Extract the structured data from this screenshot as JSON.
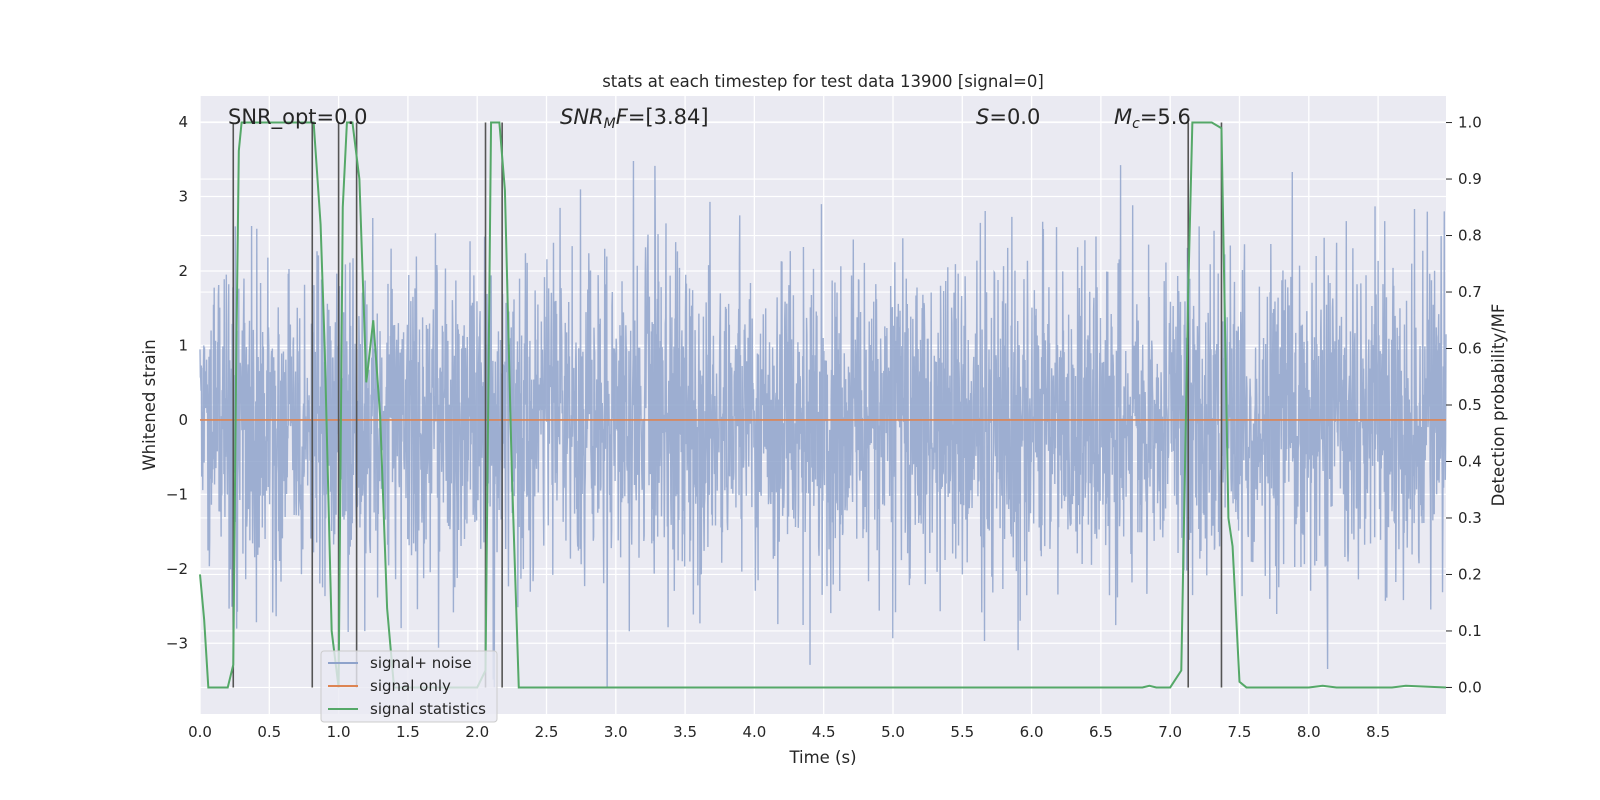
{
  "chart_data": {
    "type": "line",
    "title": "stats at each timestep for test data 13900 [signal=0]",
    "xlabel": "Time (s)",
    "ylabel": "Whitened strain",
    "y2label": "Detection probability/MF",
    "xlim": [
      0,
      8.99
    ],
    "ylim": [
      -3.95,
      4.35
    ],
    "y2lim": [
      -0.047,
      1.047
    ],
    "xticks": [
      0.0,
      0.5,
      1.0,
      1.5,
      2.0,
      2.5,
      3.0,
      3.5,
      4.0,
      4.5,
      5.0,
      5.5,
      6.0,
      6.5,
      7.0,
      7.5,
      8.0,
      8.5
    ],
    "yticks": [
      -3,
      -2,
      -1,
      0,
      1,
      2,
      3,
      4
    ],
    "y2ticks": [
      0.0,
      0.1,
      0.2,
      0.3,
      0.4,
      0.5,
      0.6,
      0.7,
      0.8,
      0.9,
      1.0
    ],
    "xtick_labels": [
      "0.0",
      "0.5",
      "1.0",
      "1.5",
      "2.0",
      "2.5",
      "3.0",
      "3.5",
      "4.0",
      "4.5",
      "5.0",
      "5.5",
      "6.0",
      "6.5",
      "7.0",
      "7.5",
      "8.0",
      "8.5"
    ],
    "ytick_labels": [
      "−3",
      "−2",
      "−1",
      "0",
      "1",
      "2",
      "3",
      "4"
    ],
    "y2tick_labels": [
      "0.0",
      "0.1",
      "0.2",
      "0.3",
      "0.4",
      "0.5",
      "0.6",
      "0.7",
      "0.8",
      "0.9",
      "1.0"
    ],
    "grid": true,
    "legend_position": "lower-left",
    "annotations": [
      {
        "text": "SNR_opt=0.0",
        "x": 0.2
      },
      {
        "text": "SNR_MF=[3.84]",
        "x": 2.6
      },
      {
        "text": "S=0.0",
        "x": 5.6
      },
      {
        "text": "M_c=5.6",
        "x": 6.6
      }
    ],
    "series": [
      {
        "name": "signal+ noise",
        "color": "#8fa3cb",
        "description_values": "noise amplitude approx 1.7 sigma range, peaks to about 4 / -3.6"
      },
      {
        "name": "signal only",
        "color": "#dd8452",
        "values_constant": 0.0
      },
      {
        "name": "signal statistics",
        "color": "#55a868",
        "x": [
          0.0,
          0.03,
          0.06,
          0.1,
          0.15,
          0.2,
          0.24,
          0.26,
          0.28,
          0.3,
          0.5,
          0.7,
          0.82,
          0.87,
          0.9,
          0.95,
          1.0,
          1.03,
          1.06,
          1.1,
          1.15,
          1.2,
          1.25,
          1.3,
          1.35,
          1.4,
          1.5,
          1.6,
          1.7,
          1.8,
          1.9,
          2.0,
          2.06,
          2.1,
          2.16,
          2.2,
          2.25,
          2.3,
          2.5,
          3.0,
          3.5,
          4.0,
          4.5,
          5.0,
          5.5,
          6.0,
          6.5,
          6.8,
          6.85,
          6.9,
          7.0,
          7.08,
          7.13,
          7.16,
          7.2,
          7.3,
          7.37,
          7.42,
          7.45,
          7.5,
          7.55,
          7.6,
          8.0,
          8.1,
          8.2,
          8.6,
          8.7,
          8.99
        ],
        "values": [
          0.2,
          0.12,
          0.0,
          0.0,
          0.0,
          0.0,
          0.04,
          0.55,
          0.95,
          1.0,
          1.0,
          1.0,
          1.0,
          0.82,
          0.6,
          0.1,
          0.0,
          0.85,
          1.0,
          1.0,
          0.9,
          0.54,
          0.65,
          0.48,
          0.14,
          0.0,
          0.0,
          0.0,
          0.0,
          0.0,
          0.0,
          0.0,
          0.03,
          1.0,
          1.0,
          0.88,
          0.38,
          0.0,
          0.0,
          0.0,
          0.0,
          0.0,
          0.0,
          0.0,
          0.0,
          0.0,
          0.0,
          0.0,
          0.003,
          0.0,
          0.0,
          0.03,
          0.7,
          1.0,
          1.0,
          1.0,
          0.99,
          0.3,
          0.25,
          0.01,
          0.0,
          0.0,
          0.0,
          0.003,
          0.0,
          0.0,
          0.003,
          0.0
        ]
      }
    ],
    "detection_markers_x": [
      0.24,
      0.81,
      1.0,
      1.13,
      2.06,
      2.18,
      7.13,
      7.37
    ]
  }
}
